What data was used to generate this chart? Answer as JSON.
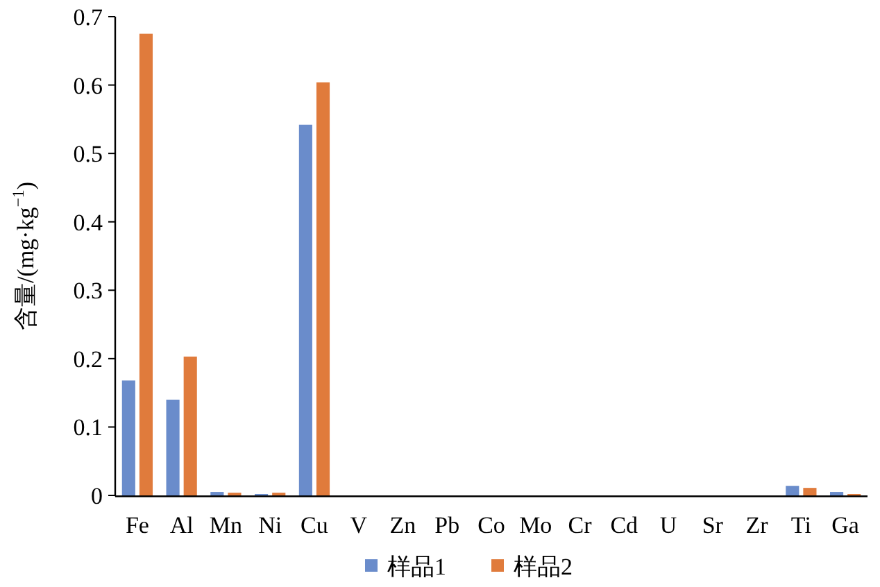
{
  "chart_data": {
    "type": "bar",
    "ylabel": "含量/(mg·kg$^{−1}$)",
    "categories": [
      "Fe",
      "Al",
      "Mn",
      "Ni",
      "Cu",
      "V",
      "Zn",
      "Pb",
      "Co",
      "Mo",
      "Cr",
      "Cd",
      "U",
      "Sr",
      "Zr",
      "Ti",
      "Ga"
    ],
    "series": [
      {
        "name": "样品1",
        "color": "#6a8ccb",
        "values": [
          0.168,
          0.14,
          0.005,
          0.002,
          0.542,
          0,
          0,
          0,
          0,
          0,
          0,
          0,
          0,
          0,
          0,
          0.014,
          0.005
        ]
      },
      {
        "name": "样品2",
        "color": "#e07b3c",
        "values": [
          0.675,
          0.203,
          0.004,
          0.004,
          0.604,
          0,
          0,
          0,
          0,
          0,
          0,
          0,
          0,
          0,
          0,
          0.011,
          0.002
        ]
      }
    ],
    "ylim": [
      0,
      0.7
    ],
    "yticks": [
      {
        "value": 0,
        "label": "0"
      },
      0.1,
      0.2,
      0.3,
      0.4,
      0.5,
      0.6,
      0.7
    ],
    "grid": false,
    "legend": "bottom"
  }
}
